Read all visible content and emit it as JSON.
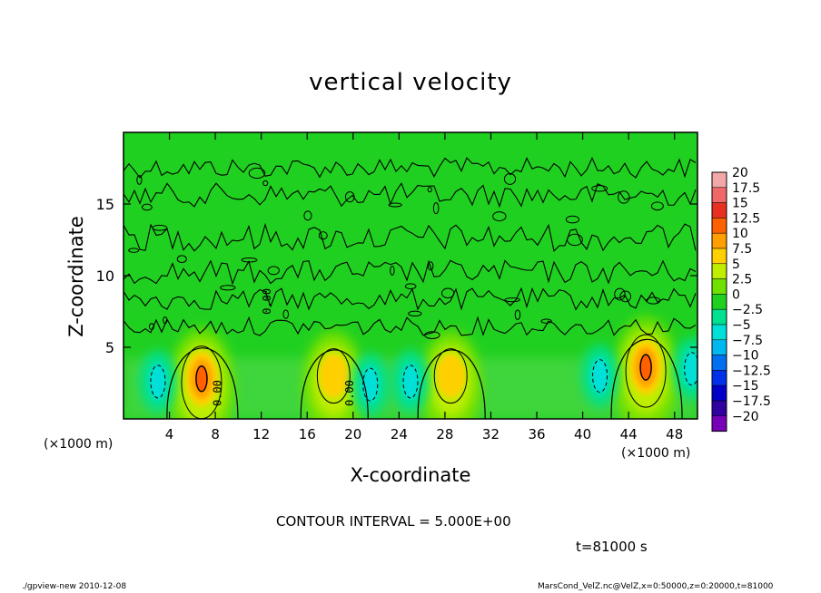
{
  "chart_data": {
    "type": "heatmap",
    "title": "vertical velocity",
    "xlabel": "X-coordinate",
    "ylabel": "Z-coordinate",
    "x_unit_label": "(×1000 m)",
    "x_ticks": [
      4,
      8,
      12,
      16,
      20,
      24,
      28,
      32,
      36,
      40,
      44,
      48
    ],
    "y_ticks": [
      5,
      10,
      15
    ],
    "xlim": [
      0,
      50
    ],
    "ylim": [
      0,
      20
    ],
    "colorbar": {
      "levels": [
        "20",
        "17.5",
        "15",
        "12.5",
        "10",
        "7.5",
        "5",
        "2.5",
        "0",
        "−2.5",
        "−5",
        "−7.5",
        "−10",
        "−12.5",
        "−15",
        "−17.5",
        "−20"
      ],
      "colors": [
        "#f3a8a8",
        "#f06868",
        "#e83020",
        "#ff6000",
        "#ffa000",
        "#ffd000",
        "#c0ee00",
        "#70e000",
        "#20d020",
        "#00e090",
        "#00e0d8",
        "#00b8f0",
        "#0070f0",
        "#0030e8",
        "#0000c8",
        "#3000a0",
        "#7800b8"
      ]
    },
    "features": [
      {
        "kind": "updraft",
        "x": 6.8,
        "z": 2.8,
        "peak": 12.5
      },
      {
        "kind": "updraft",
        "x": 18.3,
        "z": 3.0,
        "peak": 5
      },
      {
        "kind": "updraft",
        "x": 28.5,
        "z": 3.0,
        "peak": 7.5
      },
      {
        "kind": "updraft",
        "x": 45.5,
        "z": 3.6,
        "peak": 12.5
      },
      {
        "kind": "downdraft",
        "x": 3.0,
        "z": 2.6,
        "peak": -5
      },
      {
        "kind": "downdraft",
        "x": 21.5,
        "z": 2.4,
        "peak": -5
      },
      {
        "kind": "downdraft",
        "x": 25.0,
        "z": 2.6,
        "peak": -5
      },
      {
        "kind": "downdraft",
        "x": 41.5,
        "z": 3.0,
        "peak": -5
      },
      {
        "kind": "downdraft",
        "x": 49.5,
        "z": 3.5,
        "peak": -5
      }
    ],
    "contour_labels": [
      {
        "text": "0.00",
        "x": 8.5,
        "z": 1.8
      },
      {
        "text": "0.00",
        "x": 20.0,
        "z": 1.8
      },
      {
        "text": "0.00",
        "x": 12.8,
        "z": 8.2
      }
    ],
    "contour_interval_text": "CONTOUR INTERVAL = 5.000E+00",
    "time_text": "t=81000 s"
  },
  "footer": {
    "left": "./gpview-new   2010-12-08",
    "right": "MarsCond_VelZ.nc@VelZ,x=0:50000,z=0:20000,t=81000"
  }
}
